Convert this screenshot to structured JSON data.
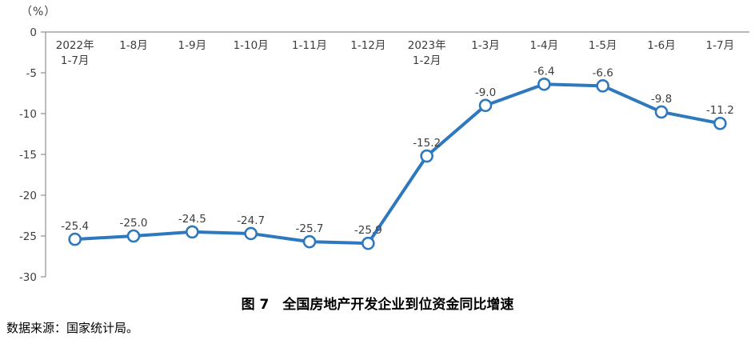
{
  "chart": {
    "unit_label": "（%）"
  },
  "chart_data": {
    "type": "line",
    "title": "图 7　全国房地产开发企业到位资金同比增速",
    "categories": [
      "2022年\n1-7月",
      "1-8月",
      "1-9月",
      "1-10月",
      "1-11月",
      "1-12月",
      "2023年\n1-2月",
      "1-3月",
      "1-4月",
      "1-5月",
      "1-6月",
      "1-7月"
    ],
    "values": [
      -25.4,
      -25.0,
      -24.5,
      -24.7,
      -25.7,
      -25.9,
      -15.2,
      -9.0,
      -6.4,
      -6.6,
      -9.8,
      -11.2
    ],
    "data_labels": [
      "-25.4",
      "-25.0",
      "-24.5",
      "-24.7",
      "-25.7",
      "-25.9",
      "-15.2",
      "-9.0",
      "-6.4",
      "-6.6",
      "-9.8",
      "-11.2"
    ],
    "ylabel": "（%）",
    "xlabel": "",
    "ylim": [
      -30,
      0
    ],
    "ytick_step": 5,
    "ytick_labels": [
      "0",
      "-5",
      "-10",
      "-15",
      "-20",
      "-25",
      "-30"
    ],
    "grid": "off",
    "legend": "none",
    "line_color": "#2e78be",
    "marker_style": "open-circle",
    "marker_fill": "#ffffff",
    "axis_color": "#909090",
    "text_color": "#3d3d3d"
  },
  "footer": {
    "source": "数据来源：国家统计局。"
  }
}
